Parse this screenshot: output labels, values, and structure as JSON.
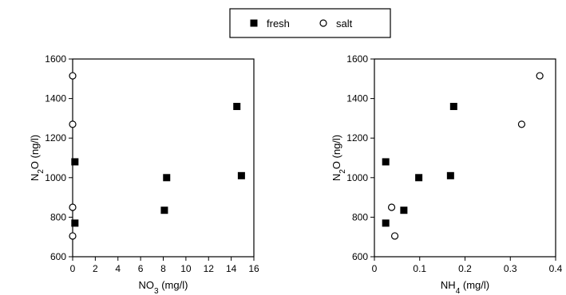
{
  "legend": [
    {
      "label": "fresh",
      "marker": "filled-square"
    },
    {
      "label": "salt",
      "marker": "open-circle"
    }
  ],
  "chart_data": [
    {
      "type": "scatter",
      "xlabel": {
        "main": "NO",
        "sub": "3",
        "unit": " (mg/l)"
      },
      "ylabel": {
        "main": "N",
        "sub": "2",
        "unit": "O (ng/l)"
      },
      "xlim": [
        0,
        16
      ],
      "ylim": [
        600,
        1600
      ],
      "xticks": [
        "0",
        "2",
        "4",
        "6",
        "8",
        "10",
        "12",
        "14",
        "16"
      ],
      "yticks": [
        "600",
        "800",
        "1000",
        "1200",
        "1400",
        "1600"
      ],
      "grid": false,
      "series": [
        {
          "name": "fresh",
          "marker": "filled-square",
          "x": [
            0.2,
            0.2,
            8.1,
            8.3,
            14.5,
            14.9
          ],
          "y": [
            1080,
            770,
            835,
            1000,
            1360,
            1010
          ]
        },
        {
          "name": "salt",
          "marker": "open-circle",
          "x": [
            0,
            0,
            0,
            0
          ],
          "y": [
            1515,
            1270,
            850,
            705
          ]
        }
      ]
    },
    {
      "type": "scatter",
      "xlabel": {
        "main": "NH",
        "sub": "4",
        "unit": " (mg/l)"
      },
      "ylabel": {
        "main": "N",
        "sub": "2",
        "unit": "O (ng/l)"
      },
      "xlim": [
        0,
        0.4
      ],
      "ylim": [
        600,
        1600
      ],
      "xticks": [
        "0",
        "0.1",
        "0.2",
        "0.3",
        "0.4"
      ],
      "yticks": [
        "600",
        "800",
        "1000",
        "1200",
        "1400",
        "1600"
      ],
      "grid": false,
      "series": [
        {
          "name": "fresh",
          "marker": "filled-square",
          "x": [
            0.025,
            0.025,
            0.065,
            0.098,
            0.168,
            0.175
          ],
          "y": [
            1080,
            770,
            835,
            1000,
            1010,
            1360
          ]
        },
        {
          "name": "salt",
          "marker": "open-circle",
          "x": [
            0.038,
            0.045,
            0.325,
            0.365
          ],
          "y": [
            850,
            705,
            1270,
            1515
          ]
        }
      ]
    }
  ]
}
